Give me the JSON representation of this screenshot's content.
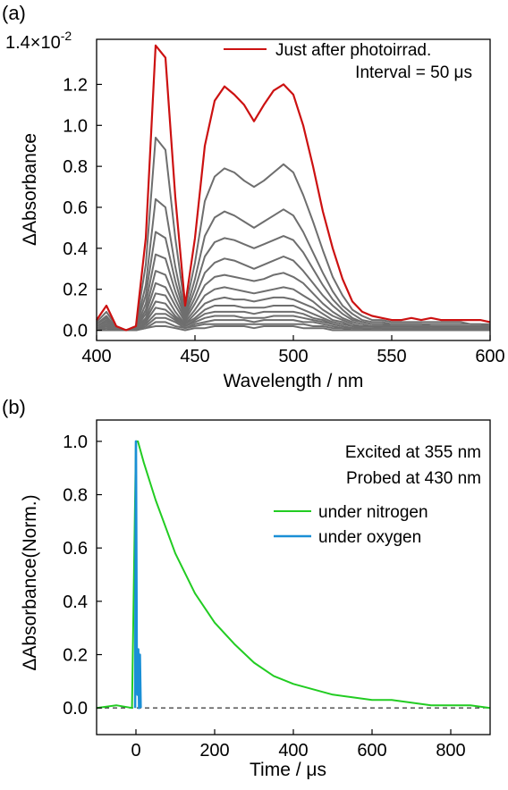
{
  "chart_data": [
    {
      "panel_label": "(a)",
      "type": "line",
      "xlabel": "Wavelength / nm",
      "ylabel": "ΔAbsorbance",
      "y_exponent_label": "1.4×10",
      "y_exponent_power": "-2",
      "x_ticks": [
        "400",
        "450",
        "500",
        "550",
        "600"
      ],
      "y_ticks": [
        "0.0",
        "0.2",
        "0.4",
        "0.6",
        "0.8",
        "1.0",
        "1.2"
      ],
      "xlim": [
        400,
        600
      ],
      "ylim": [
        -0.05,
        1.42
      ],
      "grid": false,
      "legend_position": "top-right",
      "legend": [
        {
          "label": "Just after photoirrad.",
          "color": "#cc1111"
        },
        {
          "label": "Interval = 50 μs",
          "color": ""
        }
      ],
      "x": [
        400,
        405,
        410,
        415,
        420,
        425,
        430,
        435,
        440,
        445,
        450,
        455,
        460,
        465,
        470,
        475,
        480,
        485,
        490,
        495,
        500,
        505,
        510,
        515,
        520,
        525,
        530,
        535,
        540,
        545,
        550,
        555,
        560,
        565,
        570,
        575,
        580,
        585,
        590,
        595,
        600
      ],
      "series": [
        {
          "values": [
            0.05,
            0.12,
            0.02,
            0.0,
            0.02,
            0.45,
            1.39,
            1.33,
            0.65,
            0.12,
            0.45,
            0.9,
            1.12,
            1.19,
            1.15,
            1.1,
            1.02,
            1.1,
            1.17,
            1.2,
            1.15,
            1.0,
            0.8,
            0.58,
            0.4,
            0.25,
            0.14,
            0.09,
            0.07,
            0.06,
            0.05,
            0.05,
            0.06,
            0.05,
            0.06,
            0.05,
            0.05,
            0.05,
            0.05,
            0.05,
            0.04
          ],
          "color": "#cc1111"
        },
        {
          "values": [
            0.04,
            0.09,
            0.02,
            0.0,
            0.02,
            0.32,
            0.94,
            0.88,
            0.45,
            0.1,
            0.33,
            0.63,
            0.75,
            0.79,
            0.77,
            0.73,
            0.7,
            0.73,
            0.77,
            0.81,
            0.77,
            0.66,
            0.53,
            0.39,
            0.26,
            0.17,
            0.1,
            0.07,
            0.05,
            0.05,
            0.04,
            0.04,
            0.04,
            0.04,
            0.04,
            0.04,
            0.04,
            0.04,
            0.03,
            0.03,
            0.03
          ],
          "color": "#6e6e6e"
        },
        {
          "values": [
            0.03,
            0.07,
            0.01,
            0.0,
            0.02,
            0.22,
            0.64,
            0.6,
            0.31,
            0.08,
            0.25,
            0.46,
            0.55,
            0.58,
            0.56,
            0.53,
            0.5,
            0.53,
            0.56,
            0.59,
            0.56,
            0.48,
            0.38,
            0.28,
            0.19,
            0.12,
            0.08,
            0.05,
            0.04,
            0.04,
            0.03,
            0.03,
            0.03,
            0.03,
            0.03,
            0.03,
            0.03,
            0.03,
            0.03,
            0.03,
            0.02
          ],
          "color": "#6e6e6e"
        },
        {
          "values": [
            0.03,
            0.06,
            0.01,
            0.0,
            0.02,
            0.17,
            0.48,
            0.45,
            0.24,
            0.07,
            0.2,
            0.36,
            0.43,
            0.45,
            0.44,
            0.42,
            0.4,
            0.42,
            0.44,
            0.46,
            0.44,
            0.38,
            0.3,
            0.22,
            0.15,
            0.1,
            0.06,
            0.04,
            0.03,
            0.03,
            0.03,
            0.03,
            0.03,
            0.03,
            0.02,
            0.02,
            0.02,
            0.02,
            0.02,
            0.02,
            0.02
          ],
          "color": "#6e6e6e"
        },
        {
          "values": [
            0.02,
            0.05,
            0.01,
            0.0,
            0.01,
            0.13,
            0.37,
            0.35,
            0.19,
            0.06,
            0.16,
            0.28,
            0.33,
            0.35,
            0.34,
            0.32,
            0.3,
            0.32,
            0.34,
            0.36,
            0.34,
            0.29,
            0.23,
            0.17,
            0.12,
            0.08,
            0.05,
            0.04,
            0.03,
            0.03,
            0.02,
            0.02,
            0.02,
            0.02,
            0.02,
            0.02,
            0.02,
            0.02,
            0.02,
            0.02,
            0.02
          ],
          "color": "#6e6e6e"
        },
        {
          "values": [
            0.02,
            0.04,
            0.01,
            0.0,
            0.01,
            0.1,
            0.29,
            0.27,
            0.15,
            0.05,
            0.13,
            0.22,
            0.26,
            0.27,
            0.26,
            0.25,
            0.24,
            0.25,
            0.27,
            0.28,
            0.26,
            0.23,
            0.18,
            0.13,
            0.09,
            0.06,
            0.04,
            0.03,
            0.02,
            0.02,
            0.02,
            0.02,
            0.02,
            0.02,
            0.02,
            0.02,
            0.02,
            0.02,
            0.02,
            0.02,
            0.01
          ],
          "color": "#6e6e6e"
        },
        {
          "values": [
            0.02,
            0.04,
            0.01,
            0.0,
            0.01,
            0.08,
            0.23,
            0.21,
            0.12,
            0.04,
            0.1,
            0.17,
            0.2,
            0.21,
            0.2,
            0.19,
            0.18,
            0.19,
            0.2,
            0.21,
            0.2,
            0.17,
            0.14,
            0.1,
            0.07,
            0.05,
            0.03,
            0.02,
            0.02,
            0.02,
            0.02,
            0.02,
            0.02,
            0.01,
            0.02,
            0.01,
            0.01,
            0.01,
            0.01,
            0.01,
            0.01
          ],
          "color": "#6e6e6e"
        },
        {
          "values": [
            0.01,
            0.03,
            0.0,
            0.0,
            0.01,
            0.06,
            0.18,
            0.17,
            0.09,
            0.03,
            0.08,
            0.13,
            0.15,
            0.16,
            0.15,
            0.15,
            0.14,
            0.15,
            0.16,
            0.16,
            0.15,
            0.13,
            0.11,
            0.08,
            0.05,
            0.04,
            0.02,
            0.02,
            0.02,
            0.01,
            0.01,
            0.01,
            0.01,
            0.01,
            0.01,
            0.01,
            0.01,
            0.01,
            0.01,
            0.01,
            0.01
          ],
          "color": "#6e6e6e"
        },
        {
          "values": [
            0.01,
            0.03,
            0.0,
            0.0,
            0.01,
            0.05,
            0.14,
            0.13,
            0.07,
            0.03,
            0.06,
            0.1,
            0.12,
            0.12,
            0.12,
            0.11,
            0.11,
            0.11,
            0.12,
            0.12,
            0.12,
            0.1,
            0.08,
            0.06,
            0.04,
            0.03,
            0.02,
            0.01,
            0.01,
            0.01,
            0.01,
            0.01,
            0.01,
            0.01,
            0.01,
            0.01,
            0.01,
            0.01,
            0.01,
            0.01,
            0.01
          ],
          "color": "#6e6e6e"
        },
        {
          "values": [
            0.01,
            0.02,
            0.0,
            0.0,
            0.0,
            0.04,
            0.11,
            0.1,
            0.06,
            0.02,
            0.05,
            0.08,
            0.09,
            0.09,
            0.09,
            0.09,
            0.08,
            0.09,
            0.09,
            0.09,
            0.09,
            0.08,
            0.06,
            0.05,
            0.03,
            0.02,
            0.01,
            0.01,
            0.01,
            0.01,
            0.01,
            0.01,
            0.01,
            0.01,
            0.01,
            0.01,
            0.01,
            0.01,
            0.01,
            0.01,
            0.01
          ],
          "color": "#6e6e6e"
        },
        {
          "values": [
            0.01,
            0.02,
            0.0,
            0.0,
            0.0,
            0.03,
            0.08,
            0.08,
            0.05,
            0.02,
            0.04,
            0.06,
            0.07,
            0.07,
            0.07,
            0.06,
            0.06,
            0.06,
            0.07,
            0.07,
            0.07,
            0.06,
            0.05,
            0.04,
            0.03,
            0.02,
            0.01,
            0.01,
            0.01,
            0.01,
            0.01,
            0.01,
            0.01,
            0.01,
            0.01,
            0.01,
            0.01,
            0.01,
            0.01,
            0.01,
            0.01
          ],
          "color": "#6e6e6e"
        },
        {
          "values": [
            0.01,
            0.01,
            0.0,
            0.0,
            0.0,
            0.02,
            0.06,
            0.06,
            0.04,
            0.01,
            0.03,
            0.04,
            0.05,
            0.05,
            0.05,
            0.05,
            0.04,
            0.05,
            0.05,
            0.05,
            0.05,
            0.04,
            0.04,
            0.03,
            0.02,
            0.01,
            0.01,
            0.01,
            0.0,
            0.0,
            0.0,
            0.0,
            0.0,
            0.0,
            0.0,
            0.0,
            0.0,
            0.0,
            0.0,
            0.0,
            0.0
          ],
          "color": "#6e6e6e"
        },
        {
          "values": [
            0.0,
            0.01,
            0.0,
            0.0,
            0.0,
            0.01,
            0.04,
            0.04,
            0.02,
            0.01,
            0.02,
            0.03,
            0.03,
            0.03,
            0.03,
            0.03,
            0.03,
            0.03,
            0.03,
            0.03,
            0.03,
            0.03,
            0.02,
            0.02,
            0.01,
            0.01,
            0.0,
            0.0,
            0.0,
            0.0,
            0.0,
            0.0,
            0.0,
            0.0,
            0.0,
            0.0,
            0.0,
            0.0,
            0.0,
            0.0,
            0.0
          ],
          "color": "#6e6e6e"
        },
        {
          "values": [
            0.0,
            0.0,
            0.0,
            0.0,
            0.0,
            0.01,
            0.02,
            0.02,
            0.01,
            0.0,
            0.01,
            0.01,
            0.02,
            0.02,
            0.02,
            0.02,
            0.01,
            0.02,
            0.02,
            0.02,
            0.02,
            0.01,
            0.01,
            0.01,
            0.0,
            0.0,
            0.0,
            0.0,
            0.0,
            0.0,
            0.0,
            0.0,
            0.0,
            0.0,
            0.0,
            0.0,
            0.0,
            0.0,
            0.0,
            0.0,
            0.0
          ],
          "color": "#6e6e6e"
        }
      ]
    },
    {
      "panel_label": "(b)",
      "type": "line",
      "xlabel": "Time / μs",
      "ylabel": "ΔAbsorbance(Norm.)",
      "x_ticks": [
        "0",
        "200",
        "400",
        "600",
        "800"
      ],
      "y_ticks": [
        "0.0",
        "0.2",
        "0.4",
        "0.6",
        "0.8",
        "1.0"
      ],
      "xlim": [
        -100,
        900
      ],
      "ylim": [
        -0.1,
        1.08
      ],
      "grid": false,
      "legend_position": "top-right",
      "annotations": [
        "Excited at 355 nm",
        "Probed at 430 nm"
      ],
      "baseline": {
        "y": 0,
        "style": "dashed"
      },
      "series": [
        {
          "name": "under nitrogen",
          "color": "#22cc22",
          "x": [
            -100,
            -50,
            -10,
            0,
            5,
            20,
            50,
            100,
            150,
            200,
            250,
            300,
            350,
            400,
            450,
            500,
            550,
            600,
            650,
            700,
            750,
            800,
            850,
            900
          ],
          "values": [
            0.0,
            0.01,
            0.0,
            1.0,
            1.0,
            0.92,
            0.78,
            0.58,
            0.43,
            0.32,
            0.24,
            0.17,
            0.12,
            0.09,
            0.07,
            0.05,
            0.04,
            0.03,
            0.03,
            0.02,
            0.01,
            0.01,
            0.01,
            0.0
          ]
        },
        {
          "name": "under oxygen",
          "color": "#1a8fd6",
          "x": [
            -2,
            0,
            2,
            4,
            6,
            8,
            10,
            12
          ],
          "values": [
            0.0,
            1.0,
            0.2,
            0.05,
            0.22,
            0.0,
            0.2,
            0.0
          ]
        }
      ]
    }
  ]
}
